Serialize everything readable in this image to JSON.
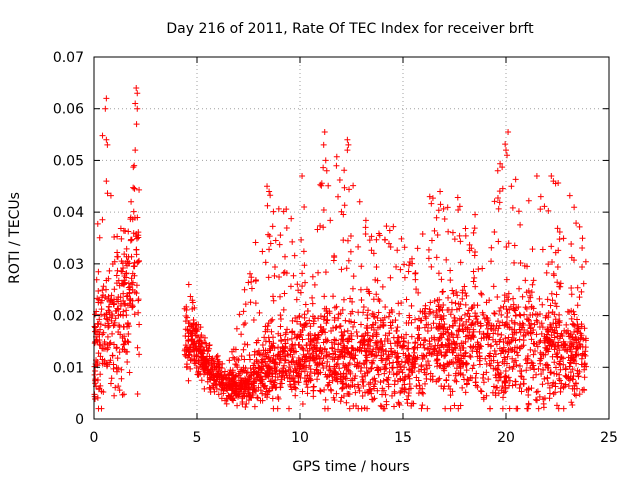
{
  "chart_data": {
    "type": "scatter",
    "title": "Day 216 of 2011, Rate Of TEC Index for receiver brft",
    "xlabel": "GPS time / hours",
    "ylabel": "ROTI / TECUs",
    "xlim": [
      0,
      25
    ],
    "ylim": [
      0,
      0.07
    ],
    "xticks": [
      0,
      5,
      10,
      15,
      20,
      25
    ],
    "yticks": [
      0,
      0.01,
      0.02,
      0.03,
      0.04,
      0.05,
      0.06,
      0.07
    ],
    "xtick_labels": [
      "0",
      "5",
      "10",
      "15",
      "20",
      "25"
    ],
    "ytick_labels": [
      "0",
      "0.01",
      "0.02",
      "0.03",
      "0.04",
      "0.05",
      "0.06",
      "0.07"
    ],
    "grid": true,
    "marker": "+",
    "color": "#ff0000",
    "envelope": [
      {
        "x": 0.0,
        "base": 0.012,
        "spread": 0.01,
        "max": 0.028
      },
      {
        "x": 0.5,
        "base": 0.016,
        "spread": 0.012,
        "max": 0.062
      },
      {
        "x": 1.0,
        "base": 0.02,
        "spread": 0.015,
        "max": 0.04
      },
      {
        "x": 1.5,
        "base": 0.022,
        "spread": 0.015,
        "max": 0.036
      },
      {
        "x": 2.1,
        "base": 0.03,
        "spread": 0.02,
        "max": 0.064
      },
      {
        "x": 4.5,
        "base": 0.016,
        "spread": 0.006,
        "max": 0.026
      },
      {
        "x": 5.5,
        "base": 0.01,
        "spread": 0.004,
        "max": 0.015
      },
      {
        "x": 6.5,
        "base": 0.006,
        "spread": 0.003,
        "max": 0.01
      },
      {
        "x": 7.5,
        "base": 0.007,
        "spread": 0.004,
        "max": 0.03
      },
      {
        "x": 8.5,
        "base": 0.01,
        "spread": 0.008,
        "max": 0.045
      },
      {
        "x": 9.5,
        "base": 0.011,
        "spread": 0.007,
        "max": 0.04
      },
      {
        "x": 10.5,
        "base": 0.012,
        "spread": 0.008,
        "max": 0.035
      },
      {
        "x": 11.2,
        "base": 0.013,
        "spread": 0.009,
        "max": 0.055
      },
      {
        "x": 12.3,
        "base": 0.012,
        "spread": 0.009,
        "max": 0.054
      },
      {
        "x": 13.5,
        "base": 0.012,
        "spread": 0.01,
        "max": 0.038
      },
      {
        "x": 14.5,
        "base": 0.012,
        "spread": 0.01,
        "max": 0.04
      },
      {
        "x": 15.5,
        "base": 0.01,
        "spread": 0.008,
        "max": 0.032
      },
      {
        "x": 16.5,
        "base": 0.014,
        "spread": 0.011,
        "max": 0.044
      },
      {
        "x": 17.5,
        "base": 0.015,
        "spread": 0.011,
        "max": 0.045
      },
      {
        "x": 18.5,
        "base": 0.014,
        "spread": 0.011,
        "max": 0.04
      },
      {
        "x": 19.5,
        "base": 0.013,
        "spread": 0.011,
        "max": 0.048
      },
      {
        "x": 20.0,
        "base": 0.013,
        "spread": 0.012,
        "max": 0.055
      },
      {
        "x": 21.0,
        "base": 0.013,
        "spread": 0.011,
        "max": 0.042
      },
      {
        "x": 22.0,
        "base": 0.013,
        "spread": 0.011,
        "max": 0.047
      },
      {
        "x": 23.0,
        "base": 0.013,
        "spread": 0.01,
        "max": 0.046
      },
      {
        "x": 23.8,
        "base": 0.013,
        "spread": 0.009,
        "max": 0.034
      }
    ],
    "segments": [
      [
        0.0,
        2.2
      ],
      [
        4.4,
        23.9
      ]
    ],
    "outliers": [
      {
        "x": 0.6,
        "y": 0.062
      },
      {
        "x": 0.55,
        "y": 0.06
      },
      {
        "x": 0.6,
        "y": 0.054
      },
      {
        "x": 0.65,
        "y": 0.053
      },
      {
        "x": 0.6,
        "y": 0.046
      },
      {
        "x": 2.05,
        "y": 0.064
      },
      {
        "x": 2.1,
        "y": 0.063
      },
      {
        "x": 2.0,
        "y": 0.061
      },
      {
        "x": 2.1,
        "y": 0.06
      },
      {
        "x": 2.0,
        "y": 0.052
      },
      {
        "x": 1.95,
        "y": 0.049
      },
      {
        "x": 1.8,
        "y": 0.042
      },
      {
        "x": 4.6,
        "y": 0.026
      },
      {
        "x": 4.5,
        "y": 0.01
      },
      {
        "x": 11.2,
        "y": 0.0555
      },
      {
        "x": 11.15,
        "y": 0.053
      },
      {
        "x": 11.25,
        "y": 0.05
      },
      {
        "x": 11.3,
        "y": 0.048
      },
      {
        "x": 12.3,
        "y": 0.054
      },
      {
        "x": 12.35,
        "y": 0.053
      },
      {
        "x": 12.3,
        "y": 0.052
      },
      {
        "x": 20.1,
        "y": 0.0555
      },
      {
        "x": 20.0,
        "y": 0.052
      },
      {
        "x": 20.05,
        "y": 0.051
      },
      {
        "x": 19.6,
        "y": 0.048
      },
      {
        "x": 21.5,
        "y": 0.047
      },
      {
        "x": 22.2,
        "y": 0.047
      },
      {
        "x": 22.3,
        "y": 0.046
      },
      {
        "x": 8.4,
        "y": 0.045
      },
      {
        "x": 8.5,
        "y": 0.044
      },
      {
        "x": 10.1,
        "y": 0.047
      },
      {
        "x": 10.2,
        "y": 0.041
      },
      {
        "x": 12.9,
        "y": 0.042
      },
      {
        "x": 16.3,
        "y": 0.043
      },
      {
        "x": 16.8,
        "y": 0.044
      }
    ]
  }
}
